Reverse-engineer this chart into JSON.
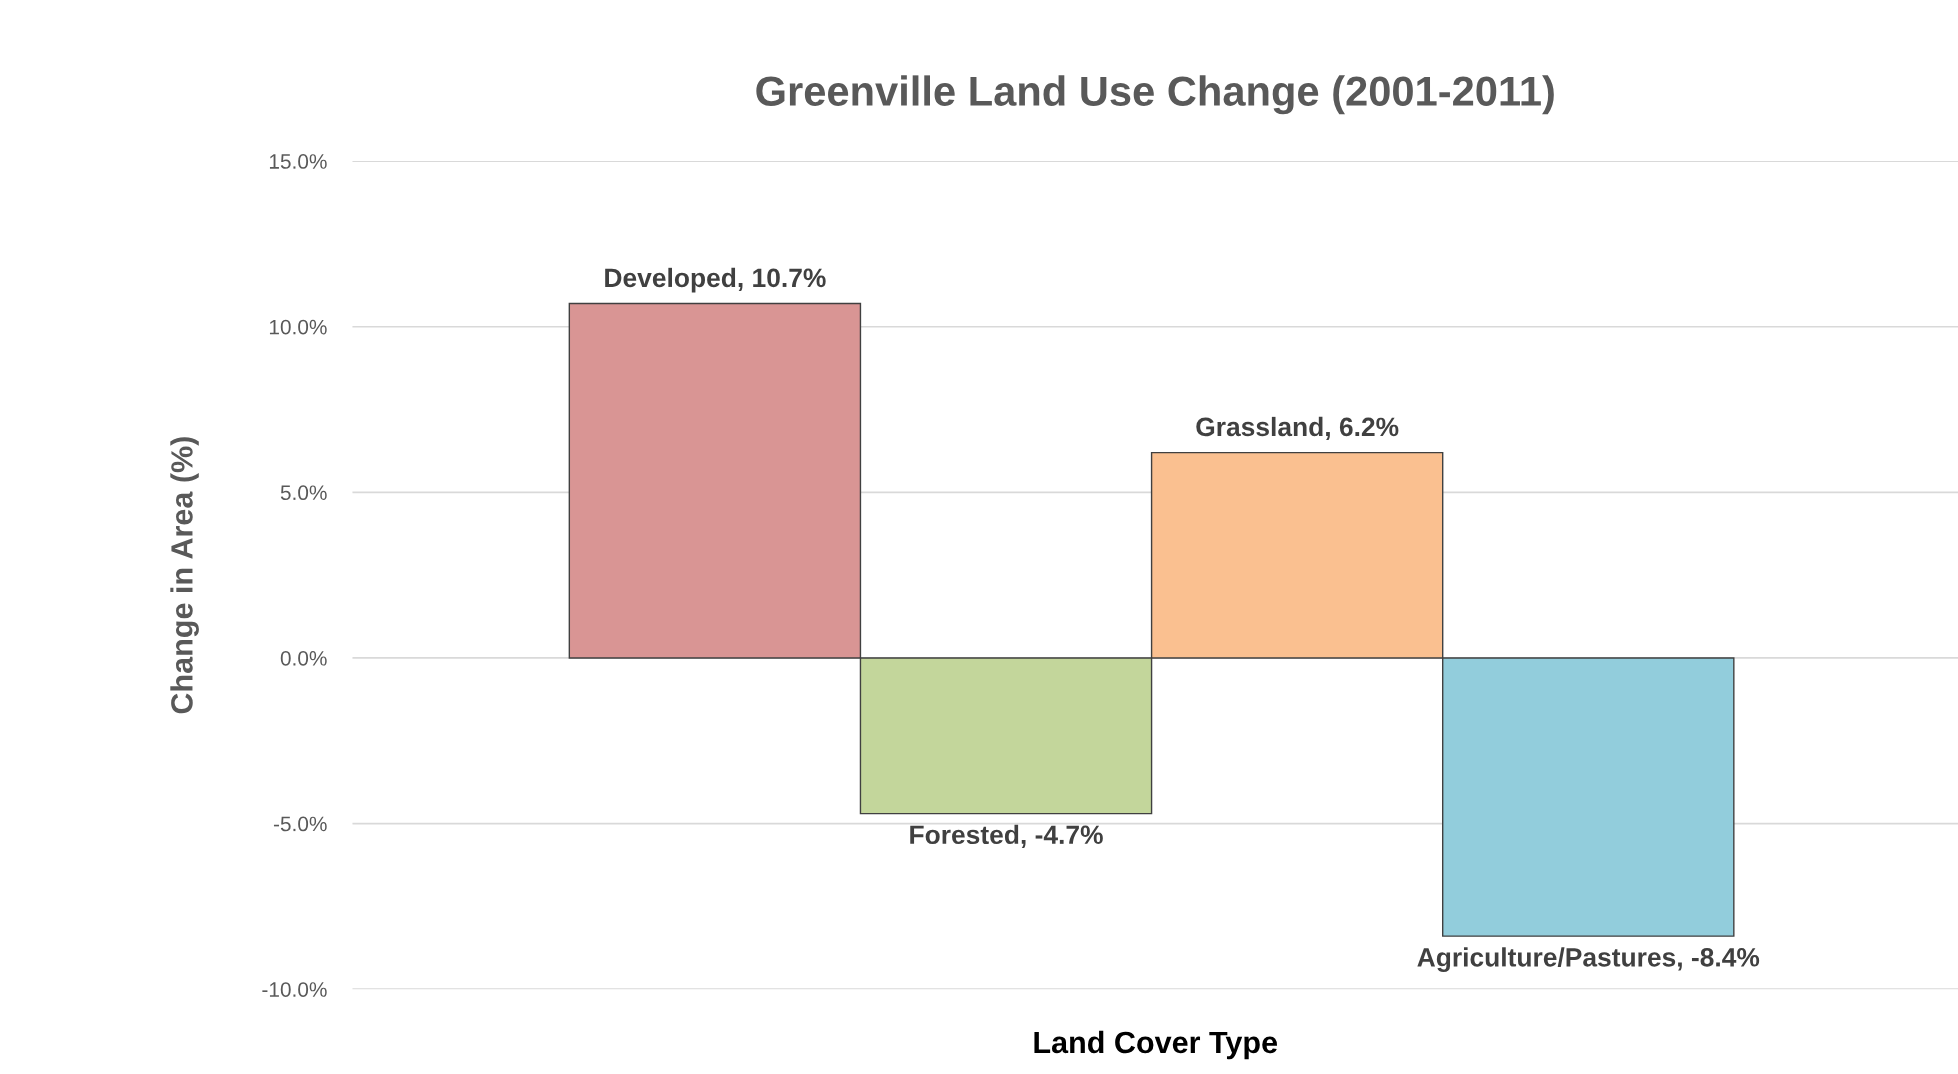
{
  "chart_data": {
    "type": "bar",
    "title": "Greenville Land Use Change (2001-2011)",
    "xlabel": "Land Cover Type",
    "ylabel": "Change in Area (%)",
    "categories": [
      null,
      null,
      null,
      null
    ],
    "values": [
      10.7,
      -4.7,
      6.2,
      -8.4
    ],
    "colors": [
      "#d99594",
      "#c3d69b",
      "#fac090",
      "#92cddc"
    ],
    "value_labels": [
      "Developed, 10.7%",
      "Forested, -4.7%",
      "Grassland, 6.2%",
      "Agriculture/Pastures, -8.4%"
    ],
    "ylim": [
      -10,
      15
    ],
    "yticks": [
      {
        "value": -10,
        "label": "-10.0%"
      },
      {
        "value": -5,
        "label": "-5.0%"
      },
      {
        "value": 0,
        "label": "0.0%"
      },
      {
        "value": 5,
        "label": "5.0%"
      },
      {
        "value": 10,
        "label": "10.0%"
      },
      {
        "value": 15,
        "label": "15.0%"
      }
    ],
    "grid": "y",
    "legend": false
  }
}
